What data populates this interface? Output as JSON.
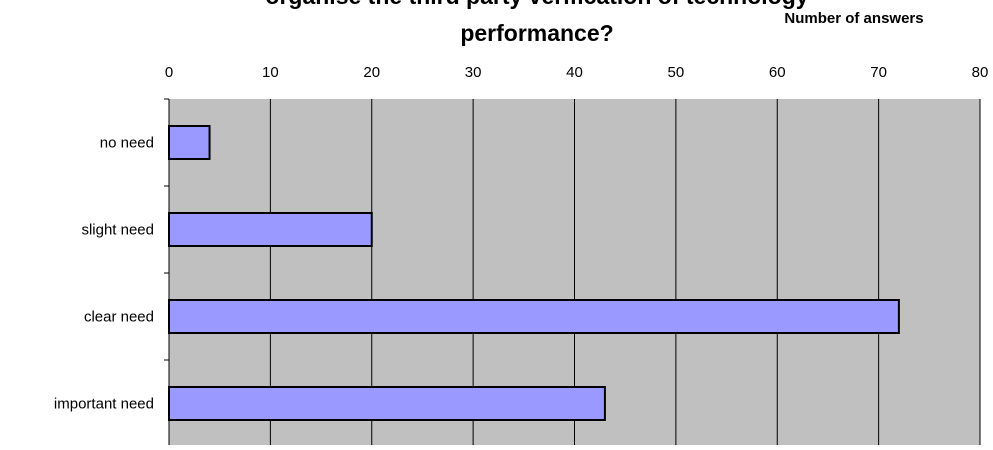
{
  "chart_data": {
    "type": "bar",
    "orientation": "horizontal",
    "title": "organise the third party verification of technology performance?",
    "title_lines": [
      "organise the third party verification of technology",
      "performance?"
    ],
    "xlabel": "Number of answers",
    "ylabel": "",
    "categories": [
      "no need",
      "slight need",
      "clear need",
      "important need"
    ],
    "values": [
      4,
      20,
      72,
      43
    ],
    "xlim": [
      0,
      80
    ],
    "xticks": [
      0,
      10,
      20,
      30,
      40,
      50,
      60,
      70,
      80
    ],
    "x_axis_position": "top",
    "grid": true,
    "legend": "none",
    "colors": {
      "plot_background": "#C0C0C0",
      "bar_fill": "#9999FF",
      "bar_stroke": "#000000",
      "gridline": "#000000"
    }
  }
}
